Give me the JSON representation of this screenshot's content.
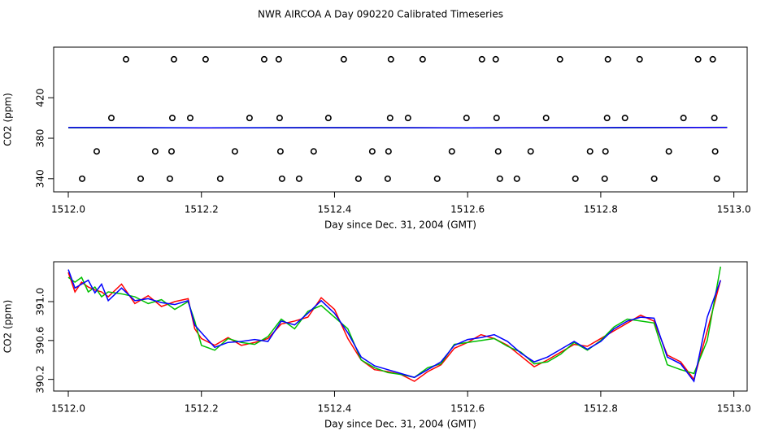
{
  "chart_data": [
    {
      "type": "scatter",
      "title": "NWR AIRCOA A  Day 090220  Calibrated Timeseries",
      "x_label": "Day since Dec. 31, 2004 (GMT)",
      "y_label": "CO2 (ppm)",
      "xlim": [
        1511.978,
        1513.02
      ],
      "ylim": [
        327,
        470
      ],
      "xticks": [
        {
          "value": 1512.0,
          "label": "1512.0"
        },
        {
          "value": 1512.2,
          "label": "1512.2"
        },
        {
          "value": 1512.4,
          "label": "1512.4"
        },
        {
          "value": 1512.6,
          "label": "1512.6"
        },
        {
          "value": 1512.8,
          "label": "1512.8"
        },
        {
          "value": 1513.0,
          "label": "1513.0"
        }
      ],
      "yticks": [
        340,
        380,
        420
      ],
      "series": [
        {
          "style": "points",
          "color": "#000000",
          "x": [
            1512.0867,
            1512.1587,
            1512.2063,
            1512.2943,
            1512.3162,
            1512.4139,
            1512.4847,
            1512.5324,
            1512.6215,
            1512.6422,
            1512.7387,
            1512.8107,
            1512.8584,
            1512.9463,
            1512.9683
          ],
          "values": [
            458,
            458,
            458,
            458,
            458,
            458,
            458,
            458,
            458,
            458,
            458,
            458,
            458,
            458,
            458
          ]
        },
        {
          "style": "points",
          "color": "#000000",
          "x": [
            1512.0647,
            1512.1563,
            1512.1832,
            1512.2723,
            1512.3175,
            1512.3907,
            1512.4835,
            1512.5104,
            1512.5983,
            1512.6435,
            1512.7179,
            1512.8095,
            1512.8364,
            1512.9243,
            1512.9707
          ],
          "values": [
            400,
            400,
            400,
            400,
            400,
            400,
            400,
            400,
            400,
            400,
            400,
            400,
            400,
            400,
            400
          ]
        },
        {
          "style": "points",
          "color": "#000000",
          "x": [
            1512.0427,
            1512.1306,
            1512.1551,
            1512.2503,
            1512.3187,
            1512.3687,
            1512.4567,
            1512.4811,
            1512.5763,
            1512.6459,
            1512.6947,
            1512.7839,
            1512.8071,
            1512.9023,
            1512.9719
          ],
          "values": [
            367,
            367,
            367,
            367,
            367,
            367,
            367,
            367,
            367,
            367,
            367,
            367,
            367,
            367,
            367
          ]
        },
        {
          "style": "points",
          "color": "#000000",
          "x": [
            1512.0208,
            1512.1087,
            1512.1526,
            1512.2283,
            1512.3211,
            1512.3468,
            1512.4359,
            1512.4799,
            1512.5543,
            1512.6484,
            1512.674,
            1512.7619,
            1512.8059,
            1512.8803,
            1512.9744
          ],
          "values": [
            340,
            340,
            340,
            340,
            340,
            340,
            340,
            340,
            340,
            340,
            340,
            340,
            340,
            340,
            340
          ]
        },
        {
          "style": "line",
          "color": "#ff0000",
          "x": [
            1512.0,
            1512.2,
            1512.4,
            1512.6,
            1512.8,
            1512.99
          ],
          "values": [
            390.5,
            390.2,
            390.4,
            390.3,
            390.4,
            390.6
          ]
        },
        {
          "style": "line",
          "color": "#00c000",
          "x": [
            1512.0,
            1512.2,
            1512.4,
            1512.6,
            1512.8,
            1512.99
          ],
          "values": [
            390.4,
            390.3,
            390.5,
            390.2,
            390.3,
            390.8
          ]
        },
        {
          "style": "line",
          "color": "#0000ff",
          "x": [
            1512.0,
            1512.2,
            1512.4,
            1512.6,
            1512.8,
            1512.99
          ],
          "values": [
            390.6,
            390.3,
            390.5,
            390.3,
            390.5,
            390.7
          ]
        }
      ]
    },
    {
      "type": "line",
      "x_label": "Day since Dec. 31, 2004 (GMT)",
      "y_label": "CO2 (ppm)",
      "xlim": [
        1511.978,
        1513.02
      ],
      "ylim": [
        390.08,
        391.41
      ],
      "xticks": [
        {
          "value": 1512.0,
          "label": "1512.0"
        },
        {
          "value": 1512.2,
          "label": "1512.2"
        },
        {
          "value": 1512.4,
          "label": "1512.4"
        },
        {
          "value": 1512.6,
          "label": "1512.6"
        },
        {
          "value": 1512.8,
          "label": "1512.8"
        },
        {
          "value": 1513.0,
          "label": "1513.0"
        }
      ],
      "yticks": [
        390.2,
        390.6,
        {
          "value": 391.0,
          "label": "391.0"
        }
      ],
      "x": [
        1512.0,
        1512.01,
        1512.02,
        1512.03,
        1512.04,
        1512.05,
        1512.06,
        1512.08,
        1512.1,
        1512.12,
        1512.14,
        1512.16,
        1512.18,
        1512.19,
        1512.2,
        1512.22,
        1512.24,
        1512.26,
        1512.28,
        1512.3,
        1512.32,
        1512.34,
        1512.36,
        1512.38,
        1512.4,
        1512.42,
        1512.44,
        1512.46,
        1512.48,
        1512.5,
        1512.52,
        1512.54,
        1512.56,
        1512.58,
        1512.6,
        1512.62,
        1512.64,
        1512.66,
        1512.68,
        1512.7,
        1512.72,
        1512.74,
        1512.76,
        1512.78,
        1512.8,
        1512.82,
        1512.84,
        1512.86,
        1512.88,
        1512.9,
        1512.92,
        1512.94,
        1512.96,
        1512.98
      ],
      "series": [
        {
          "color": "#ff0000",
          "values": [
            391.3,
            391.1,
            391.2,
            391.15,
            391.12,
            391.1,
            391.05,
            391.18,
            390.98,
            391.06,
            390.95,
            391.0,
            391.03,
            390.72,
            390.62,
            390.55,
            390.63,
            390.55,
            390.58,
            390.62,
            390.77,
            390.8,
            390.84,
            391.04,
            390.92,
            390.62,
            390.4,
            390.3,
            390.28,
            390.25,
            390.18,
            390.28,
            390.35,
            390.52,
            390.58,
            390.66,
            390.62,
            390.55,
            390.44,
            390.33,
            390.4,
            390.48,
            390.56,
            390.54,
            390.62,
            390.7,
            390.78,
            390.86,
            390.8,
            390.45,
            390.38,
            390.2,
            390.7,
            391.22
          ]
        },
        {
          "color": "#00c000",
          "values": [
            391.25,
            391.2,
            391.25,
            391.1,
            391.15,
            391.05,
            391.1,
            391.08,
            391.05,
            390.98,
            391.02,
            390.92,
            391.0,
            390.8,
            390.55,
            390.5,
            390.62,
            390.58,
            390.56,
            390.64,
            390.82,
            390.72,
            390.9,
            390.96,
            390.84,
            390.72,
            390.4,
            390.32,
            390.27,
            390.25,
            390.22,
            390.32,
            390.36,
            390.56,
            390.58,
            390.6,
            390.62,
            390.54,
            390.48,
            390.36,
            390.38,
            390.46,
            390.58,
            390.5,
            390.6,
            390.74,
            390.82,
            390.8,
            390.78,
            390.35,
            390.3,
            390.26,
            390.6,
            391.36
          ]
        },
        {
          "color": "#0000ff",
          "values": [
            391.33,
            391.14,
            391.18,
            391.22,
            391.09,
            391.18,
            391.01,
            391.14,
            391.01,
            391.03,
            390.99,
            390.97,
            391.01,
            390.76,
            390.68,
            390.53,
            390.58,
            390.59,
            390.61,
            390.59,
            390.8,
            390.76,
            390.88,
            391.01,
            390.88,
            390.68,
            390.43,
            390.34,
            390.3,
            390.26,
            390.22,
            390.3,
            390.38,
            390.55,
            390.61,
            390.63,
            390.66,
            390.59,
            390.47,
            390.38,
            390.43,
            390.51,
            390.59,
            390.51,
            390.59,
            390.72,
            390.8,
            390.84,
            390.83,
            390.43,
            390.36,
            390.18,
            390.84,
            391.22
          ]
        }
      ]
    }
  ]
}
